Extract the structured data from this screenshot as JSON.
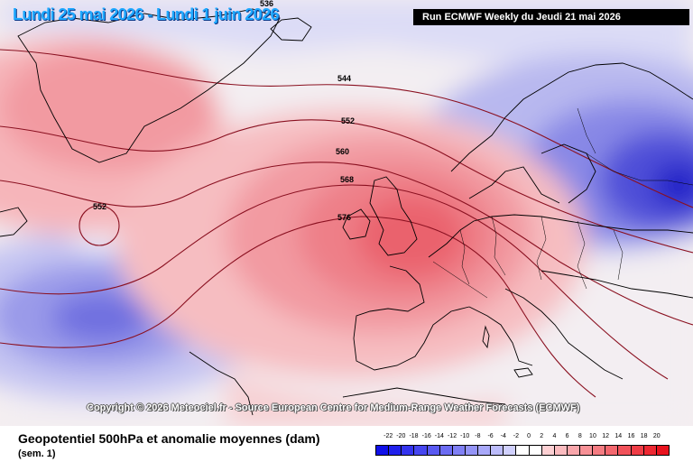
{
  "header": {
    "date_range": "Lundi 25 mai 2026 - Lundi 1 juin 2026",
    "run_label": "Run ECMWF Weekly du Jeudi 21 mai 2026"
  },
  "map": {
    "copyright": "Copyright © 2026 Meteociel.fr - Source European Centre for Medium-Range Weather Forecasts (ECMWF)",
    "contour_labels": [
      "536",
      "544",
      "552",
      "552",
      "560",
      "568",
      "576"
    ],
    "positive_anomaly_color": "#e8313f",
    "negative_anomaly_color": "#2f2fd8"
  },
  "footer": {
    "title": "Geopotentiel 500hPa et anomalie moyennes (dam)",
    "subtitle": "(sem. 1)"
  },
  "legend": {
    "ticks": [
      "-22",
      "-20",
      "-18",
      "-16",
      "-14",
      "-12",
      "-10",
      "-8",
      "-6",
      "-4",
      "-2",
      "0",
      "2",
      "4",
      "6",
      "8",
      "10",
      "12",
      "14",
      "16",
      "18",
      "20"
    ],
    "colors": [
      "#1010e8",
      "#2020ec",
      "#3333ee",
      "#4646f0",
      "#5959f2",
      "#6c6cf3",
      "#8080f5",
      "#9494f7",
      "#a8a8f9",
      "#bcbcfb",
      "#d0d0fd",
      "#ffffff",
      "#ffffff",
      "#fdd0d3",
      "#fbbbbf",
      "#f9a6ab",
      "#f79196",
      "#f57c82",
      "#f3676e",
      "#f1525a",
      "#ef3d46",
      "#ed2832",
      "#e8131e"
    ]
  }
}
